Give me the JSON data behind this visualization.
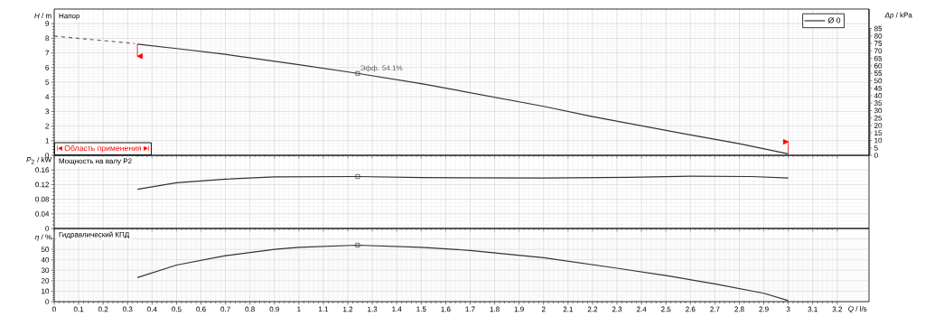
{
  "chart_data": [
    {
      "type": "line",
      "title": "Напор",
      "ylabel": "*H* / m",
      "y2label": "*Δp* / kPa",
      "xlim": [
        0,
        3.33
      ],
      "xticks": [
        0,
        0.1,
        0.2,
        0.3,
        0.4,
        0.5,
        0.6,
        0.7,
        0.8,
        0.9,
        1,
        1.1,
        1.2,
        1.3,
        1.4,
        1.5,
        1.6,
        1.7,
        1.8,
        1.9,
        2,
        2.1,
        2.2,
        2.3,
        2.4,
        2.5,
        2.6,
        2.7,
        2.8,
        2.9,
        3,
        3.1,
        3.2
      ],
      "ylim": [
        0,
        10
      ],
      "yticks": [
        0,
        1,
        2,
        3,
        4,
        5,
        6,
        7,
        8,
        9
      ],
      "y2lim": [
        0,
        98.07
      ],
      "y2ticks": [
        0,
        5,
        10,
        15,
        20,
        25,
        30,
        35,
        40,
        45,
        50,
        55,
        60,
        65,
        70,
        75,
        80,
        85
      ],
      "tick_labels": "y",
      "grid": true,
      "legend": "top right",
      "annotations": [
        {
          "text": "Эфф. 54.1%",
          "x": 1.24,
          "y": 5.6
        },
        "Область применения"
      ],
      "series": [
        {
          "x": [
            0,
            0.33
          ],
          "values": [
            8.15,
            7.64
          ],
          "color": "#666666",
          "line_style": "dashed",
          "marker": "none"
        },
        {
          "name": "Ø 0",
          "x": [
            0.34,
            0.5,
            0.7,
            1.0,
            1.24,
            1.5,
            2.0,
            2.2,
            2.6,
            2.8,
            3.0
          ],
          "values": [
            7.6,
            7.3,
            6.9,
            6.2,
            5.6,
            4.9,
            3.35,
            2.65,
            1.4,
            0.8,
            0.1
          ],
          "color": "#333333",
          "line_style": "solid",
          "marker": "none"
        },
        {
          "type": "scatter",
          "x": [
            1.24
          ],
          "values": [
            5.6
          ],
          "color": "#333333",
          "marker": "square"
        }
      ]
    },
    {
      "type": "line",
      "title": "Мощность на валу P2",
      "ylabel": "*P*$_{2}$ / kW",
      "xlim": [
        0,
        3.33
      ],
      "xticks": [
        0,
        0.1,
        0.2,
        0.3,
        0.4,
        0.5,
        0.6,
        0.7,
        0.8,
        0.9,
        1,
        1.1,
        1.2,
        1.3,
        1.4,
        1.5,
        1.6,
        1.7,
        1.8,
        1.9,
        2,
        2.1,
        2.2,
        2.3,
        2.4,
        2.5,
        2.6,
        2.7,
        2.8,
        2.9,
        3,
        3.1,
        3.2
      ],
      "ylim": [
        0,
        0.2
      ],
      "yticks": [
        0,
        0.04,
        0.08,
        0.12,
        0.16
      ],
      "tick_labels": "y",
      "grid": true,
      "series": [
        {
          "x": [
            0.34,
            0.5,
            0.7,
            0.9,
            1.24,
            1.5,
            2.0,
            2.35,
            2.6,
            2.85,
            3.0
          ],
          "values": [
            0.107,
            0.125,
            0.135,
            0.141,
            0.142,
            0.139,
            0.138,
            0.14,
            0.143,
            0.142,
            0.138
          ],
          "color": "#333333",
          "line_style": "solid",
          "marker": "none"
        },
        {
          "type": "scatter",
          "x": [
            1.24
          ],
          "values": [
            0.142
          ],
          "color": "#333333",
          "marker": "square"
        }
      ]
    },
    {
      "type": "line",
      "title": "Гидравлический КПД",
      "ylabel": "*η* / %",
      "xlabel": "*Q* / l/s",
      "xlim": [
        0,
        3.33
      ],
      "xticks": [
        0,
        0.1,
        0.2,
        0.3,
        0.4,
        0.5,
        0.6,
        0.7,
        0.8,
        0.9,
        1,
        1.1,
        1.2,
        1.3,
        1.4,
        1.5,
        1.6,
        1.7,
        1.8,
        1.9,
        2,
        2.1,
        2.2,
        2.3,
        2.4,
        2.5,
        2.6,
        2.7,
        2.8,
        2.9,
        3,
        3.1,
        3.2
      ],
      "ylim": [
        0,
        70
      ],
      "yticks": [
        0,
        10,
        20,
        30,
        40,
        50,
        {
          "value": 60,
          "label": null
        }
      ],
      "grid": true,
      "series": [
        {
          "x": [
            0.34,
            0.5,
            0.7,
            0.9,
            1.0,
            1.24,
            1.5,
            1.7,
            2.0,
            2.3,
            2.5,
            2.7,
            2.9,
            3.0
          ],
          "values": [
            23,
            35,
            44,
            50,
            52,
            54,
            52,
            49,
            42,
            32,
            25,
            17,
            8,
            1
          ],
          "color": "#333333",
          "line_style": "solid",
          "marker": "none"
        },
        {
          "type": "scatter",
          "x": [
            1.24
          ],
          "values": [
            54
          ],
          "color": "#333333",
          "marker": "square"
        }
      ]
    }
  ]
}
